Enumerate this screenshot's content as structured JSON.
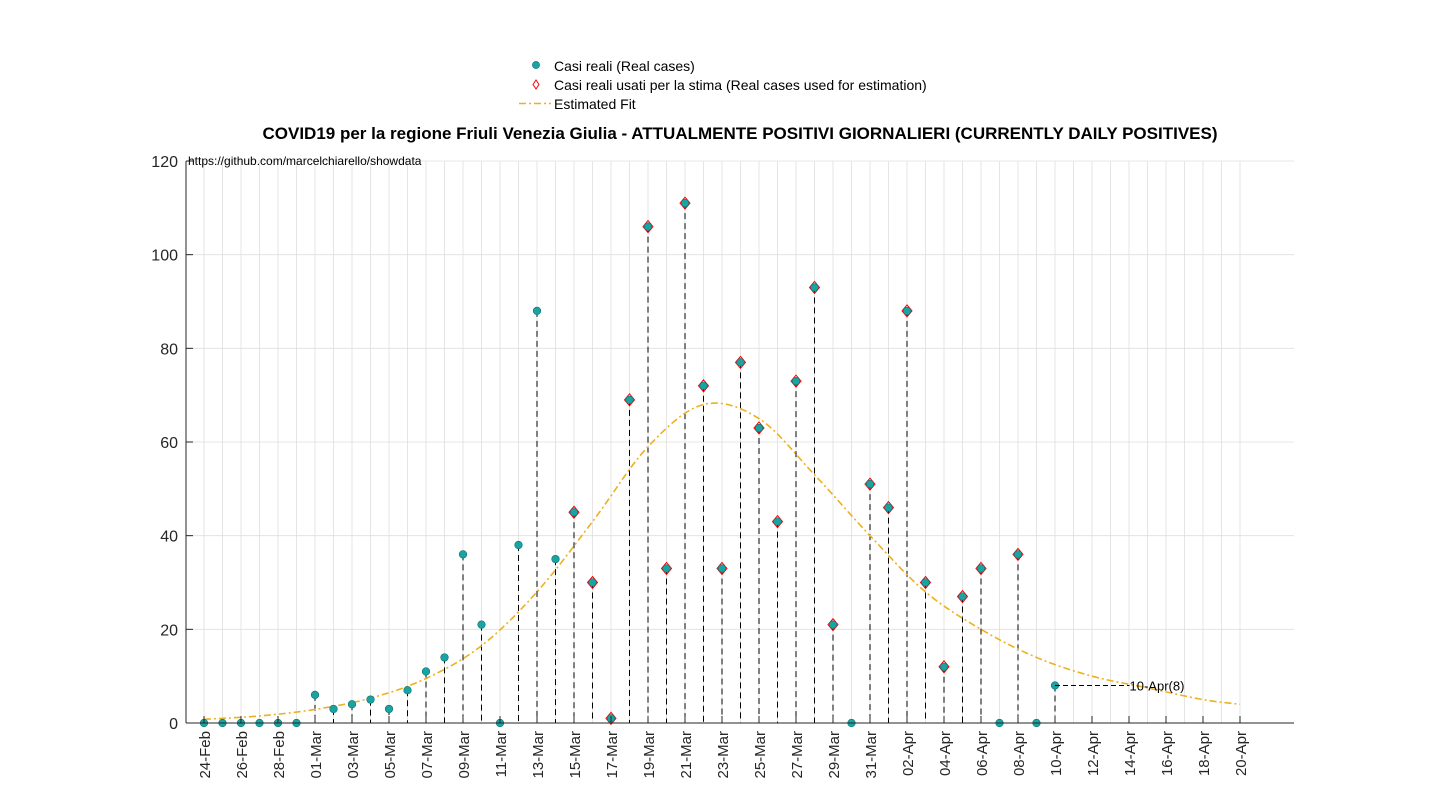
{
  "chart_data": {
    "type": "scatter",
    "title": "COVID19 per la regione Friuli Venezia Giulia - ATTUALMENTE POSITIVI GIORNALIERI (CURRENTLY DAILY POSITIVES)",
    "annotation": "https://github.com/marcelchiarello/showdata",
    "xlabel": "",
    "ylabel": "",
    "ylim": [
      0,
      120
    ],
    "yticks": [
      0,
      20,
      40,
      60,
      80,
      100,
      120
    ],
    "xlim": [
      "2020-02-24",
      "2020-04-20"
    ],
    "xticks": [
      "24-Feb",
      "26-Feb",
      "28-Feb",
      "01-Mar",
      "03-Mar",
      "05-Mar",
      "07-Mar",
      "09-Mar",
      "11-Mar",
      "13-Mar",
      "15-Mar",
      "17-Mar",
      "19-Mar",
      "21-Mar",
      "23-Mar",
      "25-Mar",
      "27-Mar",
      "29-Mar",
      "31-Mar",
      "02-Apr",
      "04-Apr",
      "06-Apr",
      "08-Apr",
      "10-Apr",
      "12-Apr",
      "14-Apr",
      "16-Apr",
      "18-Apr",
      "20-Apr"
    ],
    "grid": true,
    "legend_position": "top",
    "series": [
      {
        "name": "Casi reali (Real cases)",
        "marker": "filled-circle",
        "color": "#1aa3a3",
        "x": [
          "2020-02-24",
          "2020-02-25",
          "2020-02-26",
          "2020-02-27",
          "2020-02-28",
          "2020-02-29",
          "2020-03-01",
          "2020-03-02",
          "2020-03-03",
          "2020-03-04",
          "2020-03-05",
          "2020-03-06",
          "2020-03-07",
          "2020-03-08",
          "2020-03-09",
          "2020-03-10",
          "2020-03-11",
          "2020-03-12",
          "2020-03-13",
          "2020-03-14",
          "2020-03-15",
          "2020-03-16",
          "2020-03-17",
          "2020-03-18",
          "2020-03-19",
          "2020-03-20",
          "2020-03-21",
          "2020-03-22",
          "2020-03-23",
          "2020-03-24",
          "2020-03-25",
          "2020-03-26",
          "2020-03-27",
          "2020-03-28",
          "2020-03-29",
          "2020-03-30",
          "2020-03-31",
          "2020-04-01",
          "2020-04-02",
          "2020-04-03",
          "2020-04-04",
          "2020-04-05",
          "2020-04-06",
          "2020-04-07",
          "2020-04-08",
          "2020-04-09",
          "2020-04-10"
        ],
        "values": [
          0,
          0,
          0,
          0,
          0,
          0,
          6,
          3,
          4,
          5,
          3,
          7,
          11,
          14,
          36,
          21,
          0,
          38,
          88,
          35,
          45,
          30,
          1,
          69,
          106,
          33,
          111,
          72,
          33,
          77,
          63,
          43,
          73,
          93,
          21,
          0,
          51,
          46,
          88,
          30,
          12,
          27,
          33,
          0,
          36,
          0,
          8
        ]
      },
      {
        "name": "Casi reali usati per la stima (Real cases used for estimation)",
        "marker": "diamond",
        "color": "#ff0000",
        "x": [
          "2020-03-15",
          "2020-03-16",
          "2020-03-17",
          "2020-03-18",
          "2020-03-19",
          "2020-03-20",
          "2020-03-21",
          "2020-03-22",
          "2020-03-23",
          "2020-03-24",
          "2020-03-25",
          "2020-03-26",
          "2020-03-27",
          "2020-03-28",
          "2020-03-29",
          "2020-03-31",
          "2020-04-01",
          "2020-04-02",
          "2020-04-03",
          "2020-04-04",
          "2020-04-05",
          "2020-04-06",
          "2020-04-08"
        ],
        "values": [
          45,
          30,
          1,
          69,
          106,
          33,
          111,
          72,
          33,
          77,
          63,
          43,
          73,
          93,
          21,
          51,
          46,
          88,
          30,
          12,
          27,
          33,
          36
        ]
      },
      {
        "name": "Estimated Fit",
        "type": "line",
        "style": "dash-dot",
        "color": "#edb120",
        "x": [
          "2020-02-24",
          "2020-02-27",
          "2020-03-01",
          "2020-03-04",
          "2020-03-07",
          "2020-03-10",
          "2020-03-13",
          "2020-03-16",
          "2020-03-19",
          "2020-03-22",
          "2020-03-25",
          "2020-03-28",
          "2020-03-31",
          "2020-04-03",
          "2020-04-06",
          "2020-04-09",
          "2020-04-12",
          "2020-04-15",
          "2020-04-18",
          "2020-04-20"
        ],
        "values": [
          0.8,
          1.5,
          2.9,
          5.3,
          9.5,
          16.5,
          28,
          43,
          59,
          68,
          65,
          53,
          40,
          28,
          20,
          14,
          10,
          7.5,
          5,
          4
        ]
      }
    ],
    "point_label": {
      "x": "2020-04-10",
      "y": 8,
      "text": "10-Apr(8)",
      "label_at_x": "2020-04-15"
    },
    "colors": {
      "axis": "#262626",
      "grid": "#dfdfdf",
      "stem": "#000000"
    }
  }
}
